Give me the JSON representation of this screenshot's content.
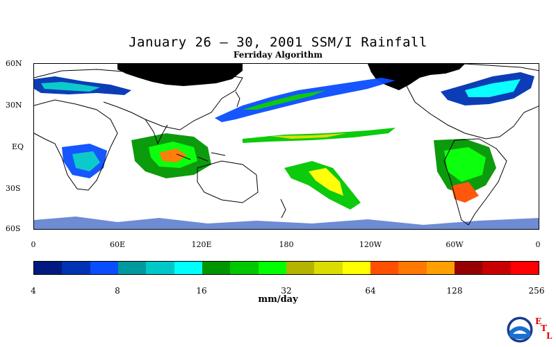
{
  "title": "January 26 – 30, 2001 SSM/I Rainfall",
  "subtitle": "Ferriday Algorithm",
  "lat_labels": [
    "60N",
    "30N",
    "EQ",
    "30S",
    "60S"
  ],
  "lon_labels": [
    "0",
    "60E",
    "120E",
    "180",
    "120W",
    "60W",
    "0"
  ],
  "colorbar": {
    "labels": [
      "4",
      "8",
      "16",
      "32",
      "64",
      "128",
      "256"
    ],
    "units": "mm/day",
    "colors": [
      "#001a80",
      "#0033b3",
      "#0a4dff",
      "#00999e",
      "#00c8c8",
      "#00ffff",
      "#009600",
      "#00c800",
      "#00ff00",
      "#b4b400",
      "#dcdc00",
      "#ffff00",
      "#ff5000",
      "#ff7800",
      "#ffa000",
      "#960000",
      "#c80000",
      "#ff0000"
    ]
  },
  "logo": {
    "agency": "NOAA",
    "lab_letters": [
      "E",
      "T",
      "L"
    ]
  }
}
